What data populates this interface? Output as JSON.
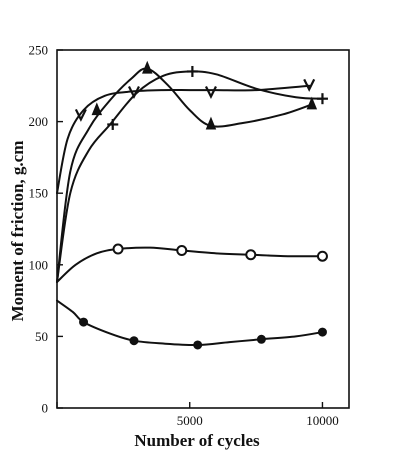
{
  "chart_data": {
    "type": "line",
    "xlabel": "Number of cycles",
    "ylabel": "Moment of friction, g.cm",
    "xlim": [
      0,
      11000
    ],
    "ylim": [
      0,
      250
    ],
    "xticks": [
      0,
      5000,
      10000
    ],
    "yticks": [
      0,
      50,
      100,
      150,
      200,
      250
    ],
    "xtick_labels": [
      "",
      "5000",
      "10000"
    ],
    "ytick_labels": [
      "0",
      "50",
      "100",
      "150",
      "200",
      "250"
    ],
    "grid": false,
    "legend": "none",
    "series": [
      {
        "marker": "v",
        "curve": [
          [
            0,
            150
          ],
          [
            400,
            188
          ],
          [
            1000,
            208
          ],
          [
            1800,
            218
          ],
          [
            2800,
            221
          ],
          [
            4000,
            222
          ],
          [
            5000,
            222
          ],
          [
            6000,
            222
          ],
          [
            7500,
            222
          ],
          [
            9500,
            225
          ]
        ],
        "points": [
          [
            900,
            205
          ],
          [
            2900,
            221
          ],
          [
            5800,
            221
          ],
          [
            9500,
            226
          ]
        ]
      },
      {
        "marker": "triangle",
        "curve": [
          [
            0,
            88
          ],
          [
            500,
            165
          ],
          [
            1200,
            195
          ],
          [
            2000,
            215
          ],
          [
            2800,
            230
          ],
          [
            3400,
            237
          ],
          [
            4200,
            225
          ],
          [
            5000,
            208
          ],
          [
            5800,
            197
          ],
          [
            7000,
            199
          ],
          [
            8500,
            205
          ],
          [
            9600,
            212
          ]
        ],
        "points": [
          [
            1500,
            208
          ],
          [
            3400,
            237
          ],
          [
            5800,
            198
          ],
          [
            9600,
            212
          ]
        ]
      },
      {
        "marker": "plus",
        "curve": [
          [
            0,
            88
          ],
          [
            500,
            150
          ],
          [
            1200,
            180
          ],
          [
            2000,
            198
          ],
          [
            3000,
            220
          ],
          [
            4000,
            232
          ],
          [
            5000,
            235
          ],
          [
            6000,
            233
          ],
          [
            7500,
            223
          ],
          [
            9000,
            217
          ],
          [
            10000,
            216
          ]
        ],
        "points": [
          [
            2100,
            198
          ],
          [
            5100,
            235
          ],
          [
            10000,
            216
          ]
        ]
      },
      {
        "marker": "circle-open",
        "curve": [
          [
            0,
            88
          ],
          [
            700,
            100
          ],
          [
            1500,
            108
          ],
          [
            2300,
            111
          ],
          [
            3500,
            112
          ],
          [
            4700,
            110
          ],
          [
            6000,
            108
          ],
          [
            7300,
            107
          ],
          [
            8700,
            106
          ],
          [
            10000,
            106
          ]
        ],
        "points": [
          [
            2300,
            111
          ],
          [
            4700,
            110
          ],
          [
            7300,
            107
          ],
          [
            10000,
            106
          ]
        ]
      },
      {
        "marker": "circle-filled",
        "curve": [
          [
            0,
            75
          ],
          [
            600,
            67
          ],
          [
            1000,
            60
          ],
          [
            2000,
            52
          ],
          [
            2900,
            47
          ],
          [
            4000,
            45
          ],
          [
            5300,
            44
          ],
          [
            6500,
            46
          ],
          [
            7700,
            48
          ],
          [
            9000,
            50
          ],
          [
            10000,
            53
          ]
        ],
        "points": [
          [
            1000,
            60
          ],
          [
            2900,
            47
          ],
          [
            5300,
            44
          ],
          [
            7700,
            48
          ],
          [
            10000,
            53
          ]
        ]
      }
    ]
  }
}
